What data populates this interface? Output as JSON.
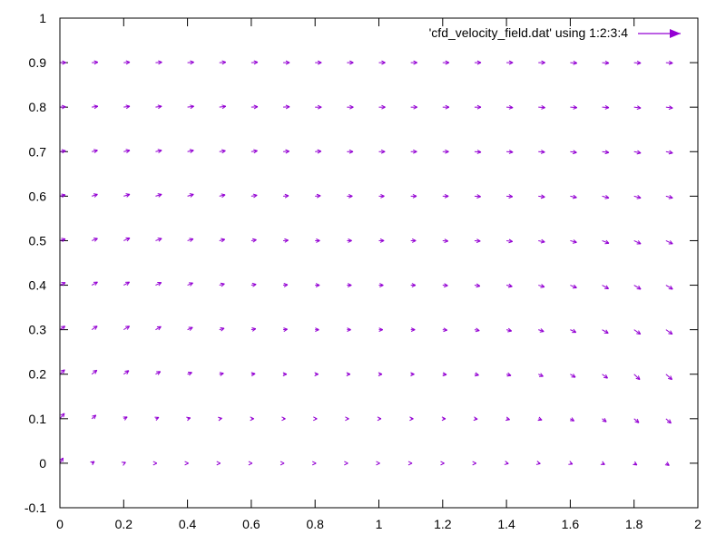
{
  "chart_data": {
    "type": "vector-field",
    "title": "",
    "xlabel": "",
    "ylabel": "",
    "xlim": [
      0,
      2
    ],
    "ylim": [
      -0.1,
      1
    ],
    "xticks": [
      "0",
      "0.2",
      "0.4",
      "0.6",
      "0.8",
      "1",
      "1.2",
      "1.4",
      "1.6",
      "1.8",
      "2"
    ],
    "yticks": [
      "-0.1",
      "0",
      "0.1",
      "0.2",
      "0.3",
      "0.4",
      "0.5",
      "0.6",
      "0.7",
      "0.8",
      "0.9",
      "1"
    ],
    "legend": {
      "label": "'cfd_velocity_field.dat' using 1:2:3:4",
      "placement": "top-right"
    },
    "series": [
      {
        "color": "#9400d3",
        "x_grid": [
          0,
          0.1,
          0.2,
          0.3,
          0.4,
          0.5,
          0.6,
          0.7,
          0.8,
          0.9,
          1.0,
          1.1,
          1.2,
          1.3,
          1.4,
          1.5,
          1.6,
          1.7,
          1.8,
          1.9
        ],
        "y_grid": [
          0,
          0.1,
          0.2,
          0.3,
          0.4,
          0.5,
          0.6,
          0.7,
          0.8,
          0.9
        ],
        "rows": [
          {
            "y": 0,
            "dx": [
              0.01,
              0.008,
              0.006,
              0.004,
              0.003,
              0.003,
              0.003,
              0.003,
              0.003,
              0.003,
              0.003,
              0.004,
              0.005,
              0.005,
              0.006,
              0.006,
              0.007,
              0.008,
              0.009,
              0.01
            ],
            "dy": [
              0.012,
              0.004,
              0.002,
              0.0,
              0.0,
              0.0,
              0.0,
              0.0,
              0.0,
              0.0,
              0.0,
              0.0,
              0.0,
              0.0,
              -0.001,
              -0.001,
              -0.002,
              -0.003,
              -0.004,
              -0.005
            ]
          },
          {
            "y": 0.1,
            "dx": [
              0.014,
              0.013,
              0.011,
              0.01,
              0.009,
              0.008,
              0.008,
              0.007,
              0.006,
              0.006,
              0.007,
              0.008,
              0.009,
              0.009,
              0.01,
              0.011,
              0.012,
              0.013,
              0.015,
              0.016
            ],
            "dy": [
              0.012,
              0.008,
              0.004,
              0.003,
              0.002,
              0.001,
              0.0,
              0.0,
              0.0,
              0.0,
              0.0,
              0.0,
              0.0,
              -0.001,
              -0.002,
              -0.003,
              -0.005,
              -0.007,
              -0.009,
              -0.01
            ]
          },
          {
            "y": 0.2,
            "dx": [
              0.015,
              0.016,
              0.016,
              0.015,
              0.014,
              0.013,
              0.012,
              0.011,
              0.01,
              0.01,
              0.01,
              0.011,
              0.012,
              0.013,
              0.014,
              0.015,
              0.016,
              0.017,
              0.018,
              0.019
            ],
            "dy": [
              0.01,
              0.009,
              0.008,
              0.006,
              0.004,
              0.002,
              0.001,
              0.0,
              0.0,
              0.0,
              0.0,
              0.0,
              -0.001,
              -0.002,
              -0.003,
              -0.005,
              -0.007,
              -0.009,
              -0.012,
              -0.012
            ]
          },
          {
            "y": 0.3,
            "dx": [
              0.016,
              0.017,
              0.018,
              0.017,
              0.016,
              0.015,
              0.014,
              0.013,
              0.012,
              0.012,
              0.012,
              0.013,
              0.014,
              0.015,
              0.016,
              0.017,
              0.018,
              0.019,
              0.02,
              0.02
            ],
            "dy": [
              0.008,
              0.008,
              0.008,
              0.007,
              0.005,
              0.003,
              0.002,
              0.001,
              0.0,
              0.0,
              0.0,
              0.0,
              -0.001,
              -0.002,
              -0.003,
              -0.004,
              -0.006,
              -0.008,
              -0.01,
              -0.01
            ]
          },
          {
            "y": 0.4,
            "dx": [
              0.017,
              0.018,
              0.018,
              0.018,
              0.017,
              0.016,
              0.015,
              0.014,
              0.014,
              0.014,
              0.014,
              0.015,
              0.016,
              0.017,
              0.018,
              0.019,
              0.02,
              0.02,
              0.021,
              0.021
            ],
            "dy": [
              0.006,
              0.007,
              0.007,
              0.006,
              0.005,
              0.003,
              0.002,
              0.001,
              0.0,
              0.0,
              0.0,
              0.0,
              -0.001,
              -0.002,
              -0.003,
              -0.004,
              -0.006,
              -0.008,
              -0.009,
              -0.009
            ]
          },
          {
            "y": 0.5,
            "dx": [
              0.017,
              0.018,
              0.019,
              0.019,
              0.018,
              0.017,
              0.016,
              0.016,
              0.015,
              0.015,
              0.016,
              0.016,
              0.017,
              0.018,
              0.019,
              0.02,
              0.02,
              0.021,
              0.021,
              0.021
            ],
            "dy": [
              0.004,
              0.005,
              0.006,
              0.005,
              0.004,
              0.003,
              0.002,
              0.001,
              0.0,
              0.0,
              0.0,
              0.0,
              -0.001,
              -0.001,
              -0.002,
              -0.003,
              -0.004,
              -0.006,
              -0.007,
              -0.007
            ]
          },
          {
            "y": 0.6,
            "dx": [
              0.017,
              0.018,
              0.019,
              0.019,
              0.019,
              0.018,
              0.018,
              0.017,
              0.017,
              0.017,
              0.017,
              0.018,
              0.018,
              0.019,
              0.019,
              0.02,
              0.02,
              0.021,
              0.021,
              0.021
            ],
            "dy": [
              0.003,
              0.004,
              0.004,
              0.004,
              0.004,
              0.003,
              0.002,
              0.001,
              0.001,
              0.0,
              0.0,
              0.0,
              0.0,
              -0.001,
              -0.001,
              -0.002,
              -0.003,
              -0.004,
              -0.004,
              -0.004
            ]
          },
          {
            "y": 0.7,
            "dx": [
              0.018,
              0.018,
              0.019,
              0.019,
              0.019,
              0.019,
              0.019,
              0.019,
              0.019,
              0.019,
              0.019,
              0.019,
              0.019,
              0.02,
              0.02,
              0.02,
              0.02,
              0.021,
              0.021,
              0.021
            ],
            "dy": [
              0.002,
              0.003,
              0.003,
              0.003,
              0.003,
              0.002,
              0.002,
              0.001,
              0.001,
              0.0,
              0.0,
              0.0,
              0.0,
              -0.001,
              -0.001,
              -0.001,
              -0.002,
              -0.002,
              -0.003,
              -0.003
            ]
          },
          {
            "y": 0.8,
            "dx": [
              0.018,
              0.019,
              0.019,
              0.019,
              0.02,
              0.02,
              0.02,
              0.02,
              0.02,
              0.02,
              0.02,
              0.02,
              0.02,
              0.02,
              0.02,
              0.021,
              0.021,
              0.021,
              0.021,
              0.021
            ],
            "dy": [
              0.001,
              0.002,
              0.002,
              0.002,
              0.002,
              0.002,
              0.001,
              0.001,
              0.0,
              0.0,
              0.0,
              0.0,
              0.0,
              0.0,
              -0.001,
              -0.001,
              -0.001,
              -0.001,
              -0.002,
              -0.002
            ]
          },
          {
            "y": 0.9,
            "dx": [
              0.019,
              0.019,
              0.019,
              0.02,
              0.02,
              0.02,
              0.02,
              0.02,
              0.02,
              0.02,
              0.02,
              0.02,
              0.02,
              0.02,
              0.02,
              0.021,
              0.021,
              0.021,
              0.021,
              0.021
            ],
            "dy": [
              0.0,
              0.001,
              0.001,
              0.001,
              0.001,
              0.001,
              0.001,
              0.0,
              0.0,
              0.0,
              0.0,
              0.0,
              0.0,
              0.0,
              0.0,
              0.0,
              -0.001,
              -0.001,
              -0.001,
              -0.001
            ]
          }
        ]
      }
    ]
  }
}
